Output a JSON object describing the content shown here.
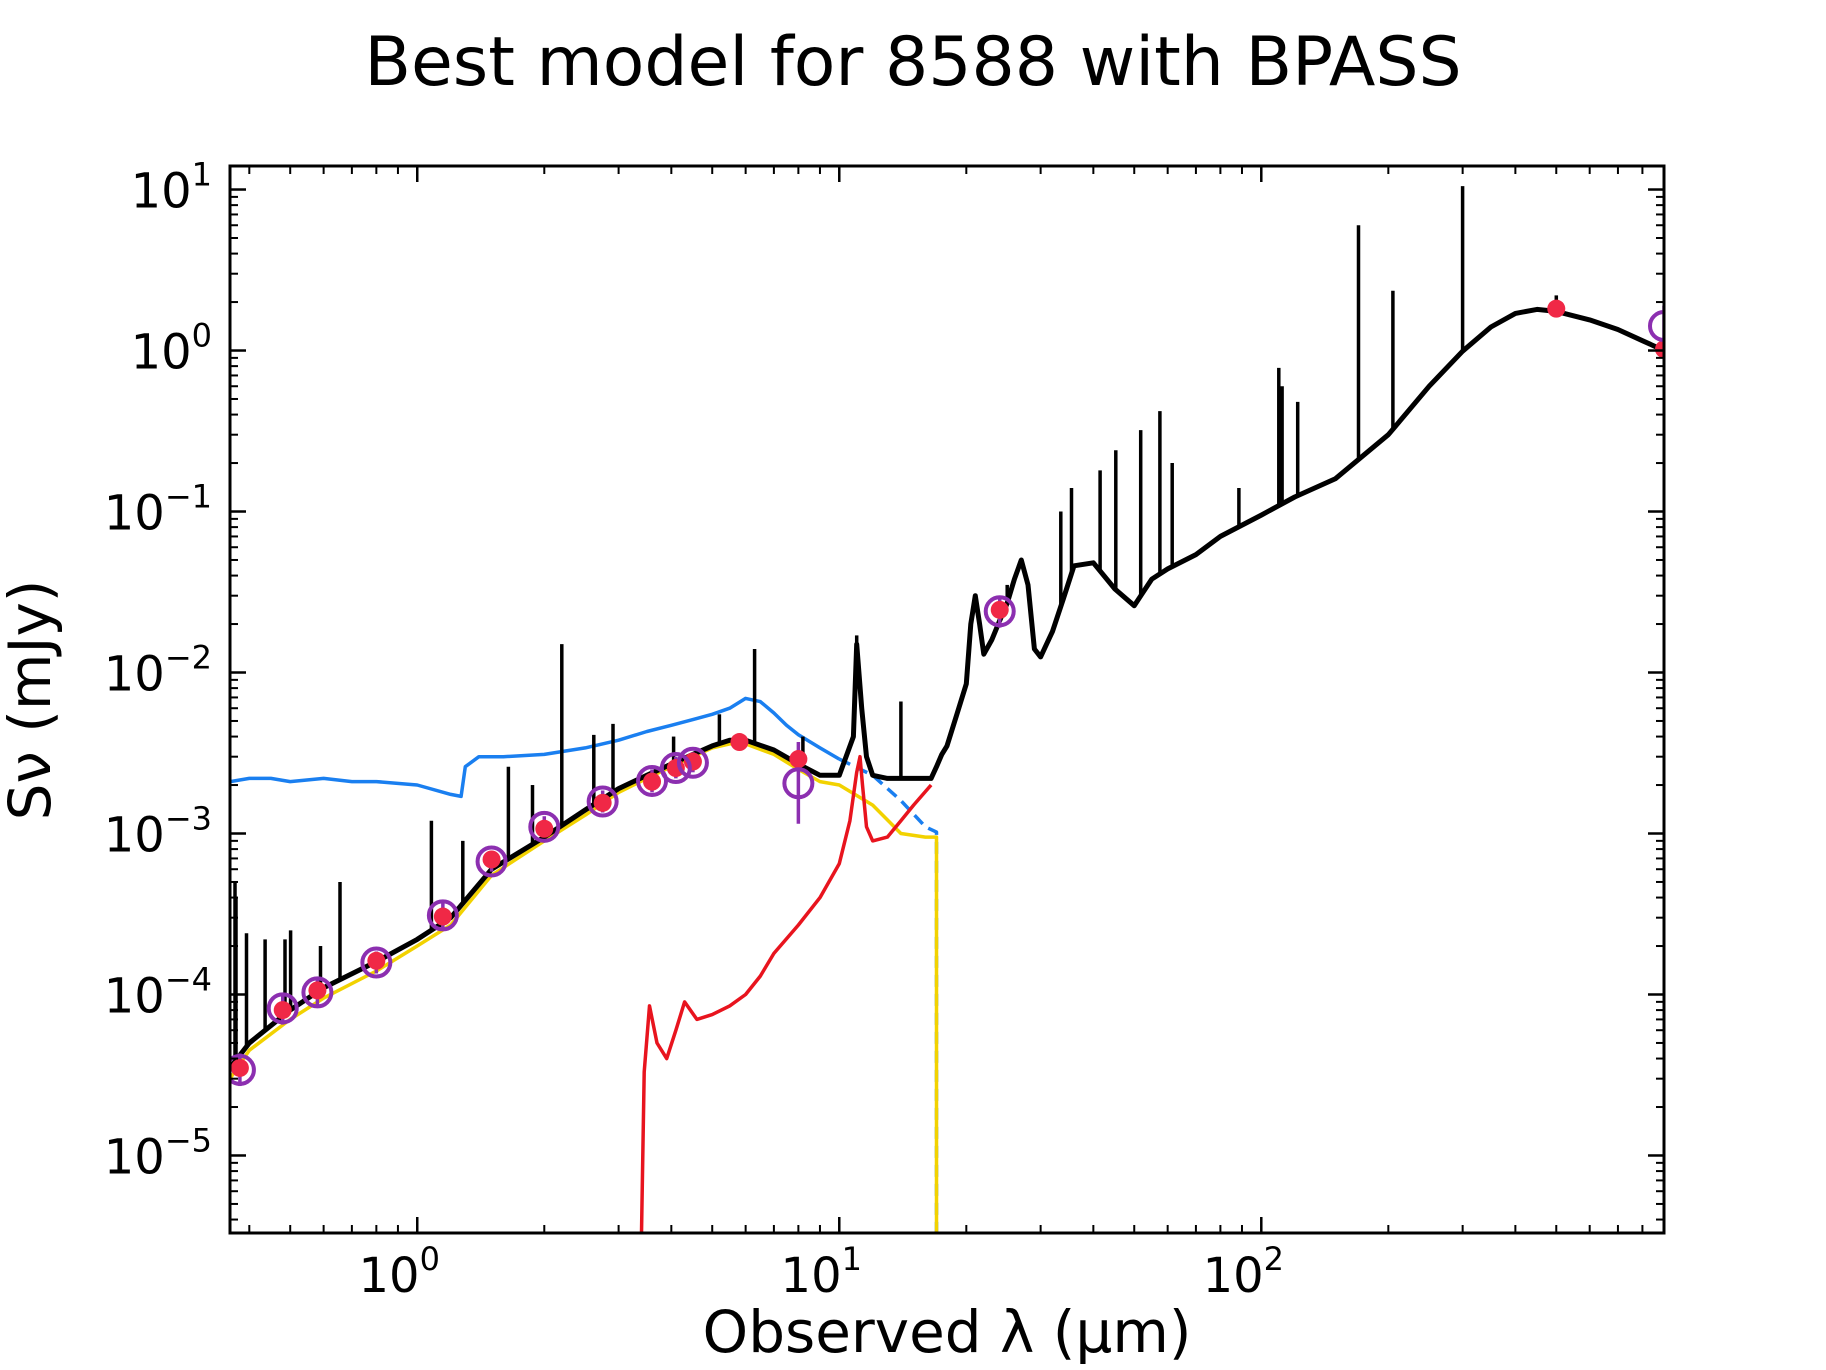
{
  "chart_data": {
    "type": "line",
    "title": "Best model for 8588 with BPASS",
    "xlabel": "Observed λ (μm)",
    "ylabel": "Sν (mJy)",
    "xscale": "log",
    "yscale": "log",
    "xlim": [
      0.36,
      900
    ],
    "ylim": [
      3.3e-06,
      14
    ],
    "grid": false,
    "legend": "none",
    "x_ticks": [
      {
        "base": "10",
        "exp": "0",
        "value": 1
      },
      {
        "base": "10",
        "exp": "1",
        "value": 10
      },
      {
        "base": "10",
        "exp": "2",
        "value": 100
      }
    ],
    "y_ticks": [
      {
        "base": "10",
        "exp": "−5",
        "value": 1e-05
      },
      {
        "base": "10",
        "exp": "−4",
        "value": 0.0001
      },
      {
        "base": "10",
        "exp": "−3",
        "value": 0.001
      },
      {
        "base": "10",
        "exp": "−2",
        "value": 0.01
      },
      {
        "base": "10",
        "exp": "−1",
        "value": 0.1
      },
      {
        "base": "10",
        "exp": "0",
        "value": 1
      },
      {
        "base": "10",
        "exp": "1",
        "value": 10
      }
    ],
    "series": [
      {
        "name": "unattenuated stellar spectrum",
        "color": "#1a7ff0",
        "style": "solid",
        "x": [
          0.36,
          0.4,
          0.45,
          0.5,
          0.6,
          0.7,
          0.8,
          1.0,
          1.2,
          1.27,
          1.3,
          1.4,
          1.6,
          2.0,
          2.5,
          3.0,
          3.5,
          4.0,
          4.5,
          5.0,
          5.5,
          6.0,
          6.5,
          7.0,
          7.5,
          8.0,
          9.0,
          10.0
        ],
        "values": [
          0.0021,
          0.0022,
          0.0022,
          0.0021,
          0.0022,
          0.0021,
          0.0021,
          0.002,
          0.00175,
          0.0017,
          0.0026,
          0.003,
          0.003,
          0.0031,
          0.0034,
          0.0038,
          0.0043,
          0.0047,
          0.0051,
          0.0055,
          0.006,
          0.0069,
          0.0066,
          0.0056,
          0.0047,
          0.0041,
          0.0034,
          0.0029
        ]
      },
      {
        "name": "unattenuated stellar (extrapolated)",
        "color": "#1a7ff0",
        "style": "dashed",
        "x": [
          10.0,
          12.0,
          14.0,
          16.0,
          17.0,
          17.0
        ],
        "values": [
          0.0029,
          0.0023,
          0.0016,
          0.0011,
          0.00102,
          3.3e-06
        ]
      },
      {
        "name": "attenuated stellar spectrum",
        "color": "#f2d200",
        "style": "solid",
        "x": [
          0.36,
          0.4,
          0.5,
          0.6,
          0.8,
          1.0,
          1.2,
          1.5,
          2.0,
          2.5,
          3.0,
          3.5,
          4.0,
          4.5,
          5.0,
          5.5,
          6.0,
          7.0,
          8.0,
          9.0,
          10.0,
          12.0,
          14.0,
          16.0,
          17.0,
          17.0
        ],
        "values": [
          3e-05,
          4.5e-05,
          7e-05,
          9.5e-05,
          0.00014,
          0.0002,
          0.00027,
          0.00055,
          0.0009,
          0.0013,
          0.0018,
          0.0022,
          0.0026,
          0.003,
          0.0034,
          0.0036,
          0.0036,
          0.0031,
          0.0025,
          0.0021,
          0.002,
          0.0015,
          0.001,
          0.00095,
          0.00095,
          3.3e-06
        ]
      },
      {
        "name": "nebular / dust emission",
        "color": "#e8141e",
        "style": "solid",
        "x": [
          3.4,
          3.45,
          3.55,
          3.7,
          3.9,
          4.1,
          4.3,
          4.6,
          5.0,
          5.5,
          6.0,
          6.5,
          7.0,
          8.0,
          9.0,
          10.0,
          10.6,
          11.0,
          11.2,
          11.35,
          11.6,
          12.0,
          13.0,
          14.0,
          15.0,
          16.5
        ],
        "values": [
          3.3e-06,
          3.3e-05,
          8.5e-05,
          5e-05,
          4e-05,
          6e-05,
          9e-05,
          7e-05,
          7.5e-05,
          8.5e-05,
          0.0001,
          0.00013,
          0.00018,
          0.00027,
          0.0004,
          0.00065,
          0.0012,
          0.0024,
          0.003,
          0.002,
          0.0011,
          0.0009,
          0.00095,
          0.0012,
          0.0015,
          0.002
        ]
      },
      {
        "name": "total model",
        "color": "#000000",
        "style": "solid",
        "x": [
          0.36,
          0.4,
          0.5,
          0.6,
          0.8,
          1.0,
          1.2,
          1.5,
          2.0,
          2.5,
          3.0,
          3.5,
          4.0,
          4.5,
          5.0,
          5.5,
          6.0,
          7.0,
          8.0,
          9.0,
          10.0,
          10.8,
          11.0,
          11.3,
          11.6,
          12.0,
          13.0,
          14.0,
          15.0,
          16.5,
          17.0,
          17.5,
          18.0,
          19.0,
          20.0,
          20.5,
          21.0,
          21.5,
          22.0,
          23.0,
          24.0,
          25.0,
          26.0,
          27.0,
          28.0,
          29.0,
          30.0,
          32.0,
          34.0,
          36.0,
          40.0,
          45.0,
          50.0,
          55.0,
          60.0,
          70.0,
          80.0,
          100.0,
          120.0,
          150.0,
          200.0,
          250.0,
          300.0,
          350.0,
          400.0,
          450.0,
          500.0,
          600.0,
          700.0,
          800.0,
          900.0
        ],
        "values": [
          3.5e-05,
          5e-05,
          8e-05,
          0.00011,
          0.00016,
          0.00022,
          0.0003,
          0.0006,
          0.00095,
          0.0014,
          0.0019,
          0.0023,
          0.0027,
          0.0031,
          0.0035,
          0.0038,
          0.0038,
          0.0033,
          0.0027,
          0.0023,
          0.0023,
          0.004,
          0.015,
          0.006,
          0.003,
          0.0023,
          0.0022,
          0.0022,
          0.0022,
          0.0022,
          0.0026,
          0.0031,
          0.0035,
          0.0055,
          0.0085,
          0.02,
          0.03,
          0.02,
          0.013,
          0.016,
          0.021,
          0.027,
          0.038,
          0.05,
          0.035,
          0.014,
          0.0125,
          0.018,
          0.029,
          0.046,
          0.048,
          0.033,
          0.026,
          0.038,
          0.044,
          0.054,
          0.07,
          0.095,
          0.123,
          0.16,
          0.3,
          0.6,
          0.99,
          1.4,
          1.7,
          1.8,
          1.75,
          1.55,
          1.35,
          1.15,
          1.0
        ]
      }
    ],
    "emission_lines": {
      "name": "model emission lines",
      "color": "#000000",
      "x": [
        0.37,
        0.372,
        0.394,
        0.436,
        0.486,
        0.501,
        0.59,
        0.656,
        1.08,
        1.282,
        1.644,
        1.875,
        2.2,
        2.62,
        2.91,
        4.05,
        5.2,
        6.3,
        8.2,
        11.0,
        14.0,
        25.0,
        33.5,
        35.5,
        41.5,
        45.2,
        51.8,
        57.5,
        61.5,
        88.5,
        110.0,
        112.0,
        122.0,
        170.0,
        205.0,
        300.0,
        500.0
      ],
      "peak": [
        0.0005,
        0.0004,
        0.00024,
        0.00022,
        0.00022,
        0.00025,
        0.0002,
        0.0005,
        0.0012,
        0.0009,
        0.0026,
        0.002,
        0.015,
        0.0041,
        0.0048,
        0.004,
        0.0055,
        0.014,
        0.004,
        0.017,
        0.0066,
        0.035,
        0.1,
        0.14,
        0.18,
        0.24,
        0.32,
        0.42,
        0.2,
        0.14,
        0.78,
        0.6,
        0.48,
        6.0,
        2.35,
        10.5,
        2.2
      ]
    },
    "observed_fluxes": {
      "name": "observed photometry",
      "color": "#8c2fb0",
      "marker": "open circle",
      "x": [
        0.38,
        0.48,
        0.58,
        0.8,
        1.15,
        1.5,
        2.0,
        2.75,
        3.6,
        4.1,
        4.5,
        8.0,
        24.0,
        900.0
      ],
      "values": [
        3.4e-05,
        8.2e-05,
        0.000103,
        0.000158,
        0.00031,
        0.00067,
        0.0011,
        0.00158,
        0.00212,
        0.00255,
        0.00275,
        0.00205,
        0.024,
        1.42
      ],
      "errors": [
        [
          2.7e-05,
          4.3e-05
        ],
        [
          6.5e-05,
          0.0001
        ],
        [
          8.5e-05,
          0.000125
        ],
        [
          0.000135,
          0.000185
        ],
        [
          0.00026,
          0.00037
        ],
        [
          0.00058,
          0.00078
        ],
        [
          0.00095,
          0.00128
        ],
        [
          0.00135,
          0.00185
        ],
        [
          0.0018,
          0.0025
        ],
        [
          0.0022,
          0.003
        ],
        [
          0.0024,
          0.0032
        ],
        [
          0.00115,
          0.0037
        ],
        [
          0.019,
          0.03
        ],
        [
          1.05,
          1.9
        ]
      ]
    },
    "model_fluxes": {
      "name": "model photometry",
      "color": "#f02846",
      "marker": "filled circle",
      "x": [
        0.38,
        0.48,
        0.58,
        0.8,
        1.15,
        1.5,
        2.0,
        2.75,
        3.6,
        4.1,
        4.5,
        5.8,
        8.0,
        24.0,
        500.0,
        900.0
      ],
      "values": [
        3.5e-05,
        8e-05,
        0.000106,
        0.000162,
        0.000305,
        0.00069,
        0.00107,
        0.00155,
        0.0021,
        0.00255,
        0.0028,
        0.0037,
        0.0029,
        0.0245,
        1.82,
        1.02
      ]
    }
  }
}
